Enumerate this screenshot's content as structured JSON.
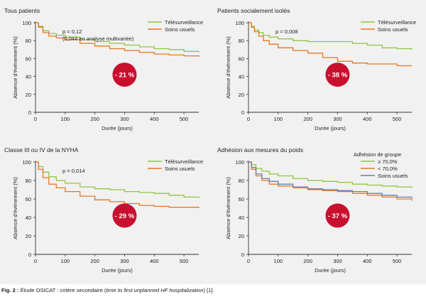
{
  "colors": {
    "tele": "#8dc73f",
    "usual": "#e87722",
    "usual_panel4": "#6b7da8",
    "badge": "#c8102e",
    "background": "#f1f1f1"
  },
  "caption": {
    "label": "Fig. 2 :",
    "text": " Étude OSICAT : critère secondaire (",
    "italic": "time to first unplanned HF hospitalization",
    "end": ") [1]."
  },
  "chart_data": [
    {
      "type": "line",
      "title": "Tous patients",
      "annotation": [
        "p = 0,12",
        "(0,044 en analyse multivariée)"
      ],
      "badge": "- 21 %",
      "xlabel": "Durée (jours)",
      "ylabel": "Absence d'événement (%)",
      "xlim": [
        0,
        550
      ],
      "ylim": [
        0,
        100
      ],
      "xticks": [
        0,
        100,
        200,
        300,
        400,
        500
      ],
      "yticks": [
        0,
        20,
        40,
        60,
        80,
        100
      ],
      "legend_title": "",
      "legend_position": "top-right",
      "series": [
        {
          "name": "Télésurveillance",
          "color_key": "tele",
          "x": [
            0,
            10,
            25,
            45,
            70,
            100,
            150,
            200,
            250,
            300,
            350,
            400,
            450,
            500,
            550
          ],
          "y": [
            100,
            96,
            91,
            88,
            86,
            84,
            81,
            79,
            77,
            75,
            73,
            71,
            70,
            68,
            67
          ]
        },
        {
          "name": "Soins usuels",
          "color_key": "usual",
          "x": [
            0,
            10,
            25,
            45,
            70,
            100,
            150,
            200,
            250,
            300,
            350,
            400,
            450,
            500,
            550
          ],
          "y": [
            100,
            95,
            89,
            85,
            83,
            81,
            77,
            74,
            71,
            69,
            67,
            65,
            64,
            63,
            62
          ]
        }
      ]
    },
    {
      "type": "line",
      "title": "Patients socialement isolés",
      "annotation": [
        "p = 0,008"
      ],
      "badge": "- 38 %",
      "xlabel": "Durée (jours)",
      "ylabel": "Absence d'événement (%)",
      "xlim": [
        0,
        550
      ],
      "ylim": [
        0,
        100
      ],
      "xticks": [
        0,
        100,
        200,
        300,
        400,
        500
      ],
      "yticks": [
        0,
        20,
        40,
        60,
        80,
        100
      ],
      "legend_title": "",
      "legend_position": "top-right",
      "series": [
        {
          "name": "Télésurveillance",
          "color_key": "tele",
          "x": [
            0,
            10,
            20,
            35,
            50,
            70,
            100,
            150,
            200,
            250,
            300,
            350,
            400,
            450,
            500,
            550
          ],
          "y": [
            100,
            96,
            92,
            89,
            86,
            84,
            82,
            80,
            79,
            79,
            79,
            77,
            75,
            72,
            71,
            70
          ]
        },
        {
          "name": "Soins usuels",
          "color_key": "usual",
          "x": [
            0,
            10,
            20,
            35,
            50,
            70,
            100,
            150,
            200,
            250,
            300,
            350,
            400,
            450,
            500,
            550
          ],
          "y": [
            100,
            95,
            90,
            85,
            80,
            76,
            72,
            69,
            66,
            61,
            57,
            55,
            54,
            54,
            52,
            52
          ]
        }
      ]
    },
    {
      "type": "line",
      "title": "Classe III ou IV de la NYHA",
      "annotation": [
        "p = 0,014"
      ],
      "badge": "- 29 %",
      "xlabel": "Durée (jours)",
      "ylabel": "Absence d'événement (%)",
      "xlim": [
        0,
        550
      ],
      "ylim": [
        0,
        100
      ],
      "xticks": [
        0,
        100,
        200,
        300,
        400,
        500
      ],
      "yticks": [
        0,
        20,
        40,
        60,
        80,
        100
      ],
      "legend_title": "",
      "legend_position": "top-right",
      "series": [
        {
          "name": "Télésurveillance",
          "color_key": "tele",
          "x": [
            0,
            10,
            25,
            45,
            70,
            100,
            150,
            200,
            250,
            300,
            350,
            400,
            450,
            500,
            550
          ],
          "y": [
            100,
            95,
            89,
            84,
            80,
            77,
            73,
            71,
            70,
            68,
            67,
            66,
            64,
            62,
            61
          ]
        },
        {
          "name": "Soins usuels",
          "color_key": "usual",
          "x": [
            0,
            10,
            25,
            45,
            70,
            100,
            150,
            200,
            250,
            300,
            350,
            400,
            450,
            500,
            550
          ],
          "y": [
            100,
            92,
            83,
            76,
            72,
            68,
            63,
            59,
            57,
            55,
            53,
            52,
            51,
            51,
            50
          ]
        }
      ]
    },
    {
      "type": "line",
      "title": "Adhésion aux mesures du poids",
      "annotation": [],
      "badge": "- 37 %",
      "xlabel": "Durée (jours)",
      "ylabel": "Absence d'événement (%)",
      "xlim": [
        0,
        550
      ],
      "ylim": [
        0,
        100
      ],
      "xticks": [
        0,
        100,
        200,
        300,
        400,
        500
      ],
      "yticks": [
        0,
        20,
        40,
        60,
        80,
        100
      ],
      "legend_title": "Adhésion de groupe",
      "legend_position": "top-right",
      "series": [
        {
          "name": "≥ 70,0%",
          "color_key": "tele",
          "x": [
            0,
            10,
            25,
            45,
            70,
            100,
            150,
            200,
            250,
            300,
            350,
            400,
            450,
            500,
            550
          ],
          "y": [
            100,
            97,
            93,
            90,
            87,
            85,
            82,
            80,
            79,
            78,
            76,
            75,
            74,
            73,
            72
          ]
        },
        {
          "name": "< 70,0%",
          "color_key": "usual",
          "x": [
            0,
            10,
            25,
            45,
            70,
            100,
            150,
            200,
            250,
            300,
            350,
            400,
            450,
            500,
            550
          ],
          "y": [
            100,
            92,
            85,
            80,
            76,
            74,
            72,
            70,
            69,
            68,
            66,
            64,
            62,
            60,
            58
          ]
        },
        {
          "name": "Soins usuels",
          "color_key": "usual_panel4",
          "x": [
            0,
            10,
            25,
            45,
            70,
            100,
            150,
            200,
            250,
            300,
            350,
            400,
            450,
            500,
            550
          ],
          "y": [
            100,
            94,
            87,
            82,
            79,
            76,
            73,
            71,
            70,
            69,
            68,
            66,
            64,
            62,
            61
          ]
        }
      ]
    }
  ]
}
